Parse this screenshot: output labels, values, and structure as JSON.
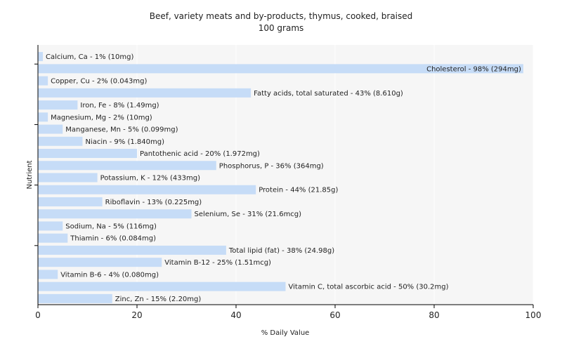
{
  "chart_data": {
    "type": "bar",
    "orientation": "horizontal",
    "title": "Beef, variety meats and by-products, thymus, cooked, braised",
    "subtitle": "100 grams",
    "xlabel": "% Daily Value",
    "ylabel": "Nutrient",
    "xlim": [
      0,
      100
    ],
    "xticks": [
      "0",
      "20",
      "40",
      "60",
      "80",
      "100"
    ],
    "grid": true,
    "bar_color": "#c6dcf7",
    "categories": [
      "Calcium, Ca",
      "Cholesterol",
      "Copper, Cu",
      "Fatty acids, total saturated",
      "Iron, Fe",
      "Magnesium, Mg",
      "Manganese, Mn",
      "Niacin",
      "Pantothenic acid",
      "Phosphorus, P",
      "Potassium, K",
      "Protein",
      "Riboflavin",
      "Selenium, Se",
      "Sodium, Na",
      "Thiamin",
      "Total lipid (fat)",
      "Vitamin B-12",
      "Vitamin B-6",
      "Vitamin C, total ascorbic acid",
      "Zinc, Zn"
    ],
    "values": [
      1,
      98,
      2,
      43,
      8,
      2,
      5,
      9,
      20,
      36,
      12,
      44,
      13,
      31,
      5,
      6,
      38,
      25,
      4,
      50,
      15
    ],
    "labels": [
      "Calcium, Ca - 1% (10mg)",
      "Cholesterol - 98% (294mg)",
      "Copper, Cu - 2% (0.043mg)",
      "Fatty acids, total saturated - 43% (8.610g)",
      "Iron, Fe - 8% (1.49mg)",
      "Magnesium, Mg - 2% (10mg)",
      "Manganese, Mn - 5% (0.099mg)",
      "Niacin - 9% (1.840mg)",
      "Pantothenic acid - 20% (1.972mg)",
      "Phosphorus, P - 36% (364mg)",
      "Potassium, K - 12% (433mg)",
      "Protein - 44% (21.85g)",
      "Riboflavin - 13% (0.225mg)",
      "Selenium, Se - 31% (21.6mcg)",
      "Sodium, Na - 5% (116mg)",
      "Thiamin - 6% (0.084mg)",
      "Total lipid (fat) - 38% (24.98g)",
      "Vitamin B-12 - 25% (1.51mcg)",
      "Vitamin B-6 - 4% (0.080mg)",
      "Vitamin C, total ascorbic acid - 50% (30.2mg)",
      "Zinc, Zn - 15% (2.20mg)"
    ]
  }
}
